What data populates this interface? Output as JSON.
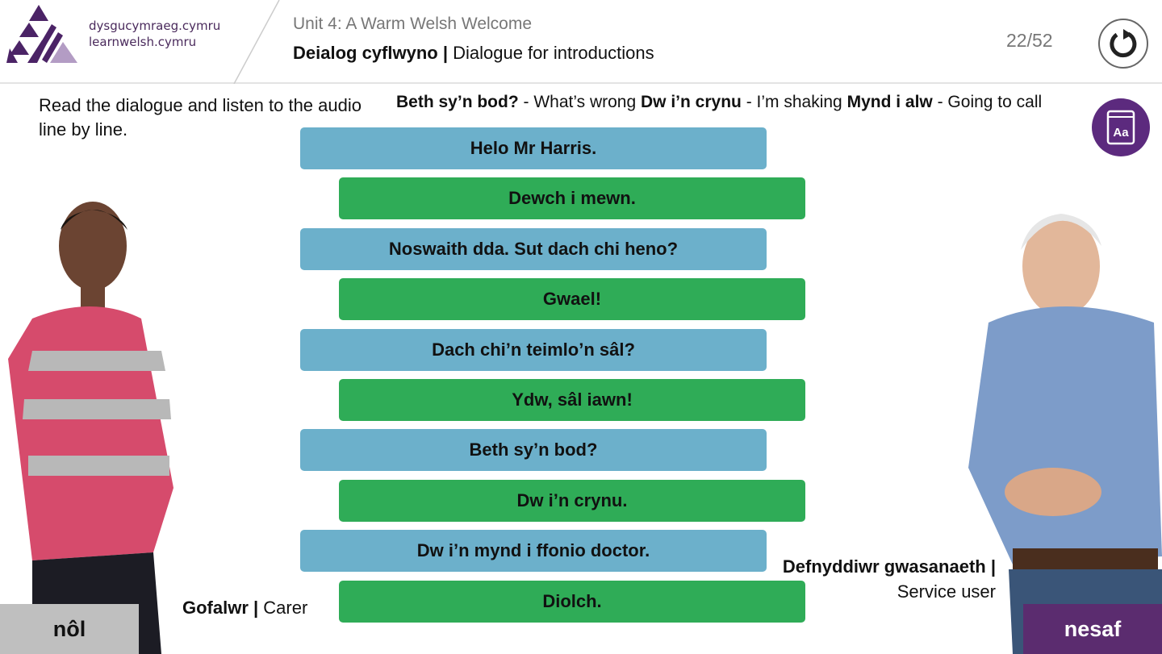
{
  "header": {
    "logo_lines": [
      "dysgucymraeg.cymru",
      "learnwelsh.cymru"
    ],
    "unit": "Unit 4: A Warm Welsh Welcome",
    "title_welsh": "Deialog cyflwyno |",
    "title_english": " Dialogue for introductions",
    "progress": "22/52",
    "reload_icon": "reload-icon"
  },
  "instructions": "Read the dialogue and listen to the audio line by line.",
  "vocab": [
    {
      "welsh": "Beth sy’n bod?",
      "english": " - What’s wrong "
    },
    {
      "welsh": "Dw i’n crynu",
      "english": " - I’m shaking "
    },
    {
      "welsh": "Mynd i alw",
      "english": " - Going to call"
    }
  ],
  "glossary_icon": "book-icon",
  "glossary_label": "Aa",
  "dialogue": [
    {
      "speaker": "carer",
      "text": "Helo Mr Harris."
    },
    {
      "speaker": "user",
      "text": "Dewch i mewn."
    },
    {
      "speaker": "carer",
      "text": "Noswaith dda. Sut dach chi heno?"
    },
    {
      "speaker": "user",
      "text": "Gwael!"
    },
    {
      "speaker": "carer",
      "text": "Dach chi’n teimlo’n sâl?"
    },
    {
      "speaker": "user",
      "text": "Ydw, sâl iawn!"
    },
    {
      "speaker": "carer",
      "text": "Beth sy’n bod?"
    },
    {
      "speaker": "user",
      "text": "Dw i’n crynu."
    },
    {
      "speaker": "carer",
      "text": "Dw i’n mynd i ffonio doctor."
    },
    {
      "speaker": "user",
      "text": "Diolch."
    }
  ],
  "carer_label": {
    "welsh": "Gofalwr |",
    "english": " Carer"
  },
  "user_label": {
    "welsh": "Defnyddiwr gwasanaeth |",
    "english": "Service user"
  },
  "nav": {
    "back": "nôl",
    "next": "nesaf"
  },
  "colors": {
    "carer_line": "#6cb0cb",
    "user_line": "#2fac57",
    "brand": "#5c2a7e",
    "back": "#bfbfbf"
  }
}
